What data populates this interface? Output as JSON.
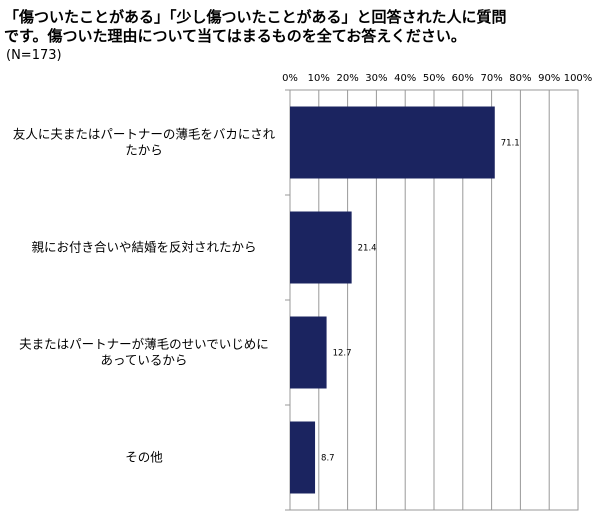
{
  "title_lines": [
    "「傷ついたことがある」「少し傷ついたことがある」と回答された人に質問",
    "です。傷ついた理由について当てはまるものを全てお答えください。"
  ],
  "sample_size": "(N=173)",
  "chart_data": {
    "type": "bar",
    "orientation": "horizontal",
    "x_ticks": [
      "0%",
      "10%",
      "20%",
      "30%",
      "40%",
      "50%",
      "60%",
      "70%",
      "80%",
      "90%",
      "100%"
    ],
    "xlim": [
      0,
      100
    ],
    "grid": true,
    "categories": [
      [
        "友人に夫またはパートナーの薄毛をバカにされ",
        "たから"
      ],
      [
        "親にお付き合いや結婚を反対されたから"
      ],
      [
        "夫またはパートナーが薄毛のせいでいじめに",
        "あっているから"
      ],
      [
        "その他"
      ]
    ],
    "values": [
      71.1,
      21.4,
      12.7,
      8.7
    ],
    "value_labels": [
      "71.1",
      "21.4",
      "12.7",
      "8.7"
    ],
    "bar_color": "#1b2460"
  }
}
